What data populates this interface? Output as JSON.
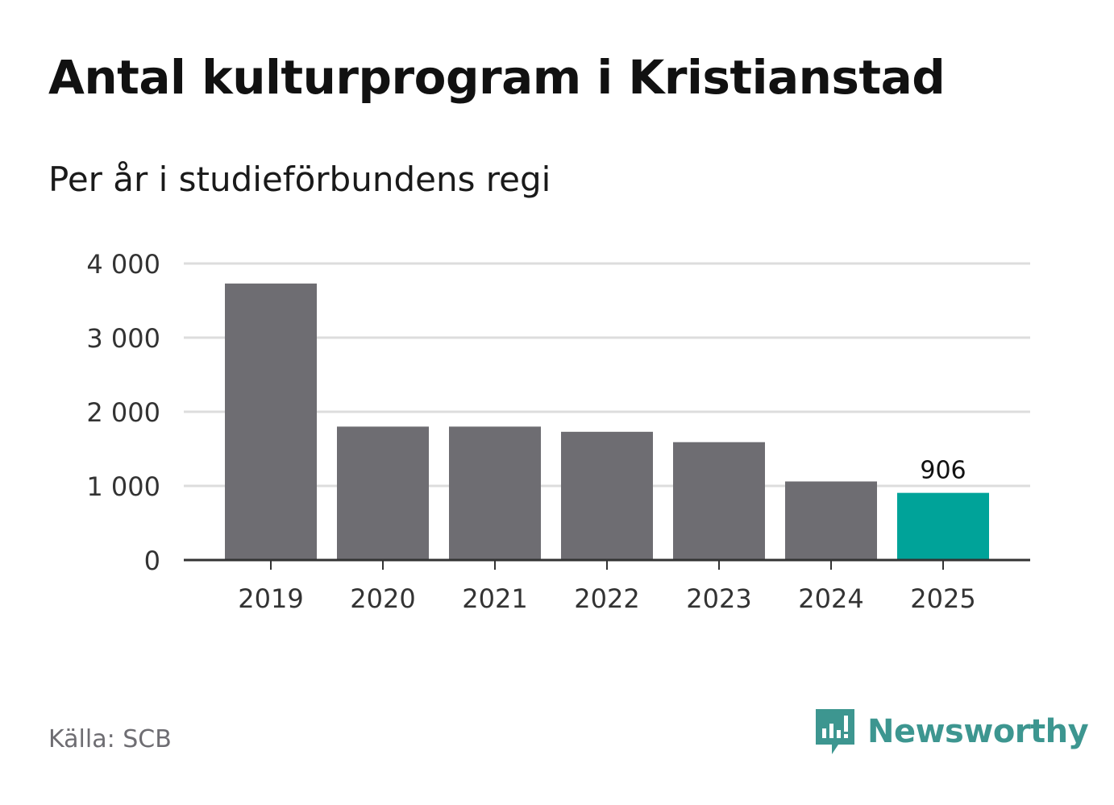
{
  "title": "Antal kulturprogram i Kristianstad",
  "subtitle": "Per år i studieförbundens regi",
  "source": "Källa: SCB",
  "brand": "Newsworthy",
  "colors": {
    "bar": "#6e6d72",
    "highlight": "#00a399",
    "grid": "#dddddd",
    "axis": "#333333",
    "brand": "#3d9690"
  },
  "chart_data": {
    "type": "bar",
    "title": "Antal kulturprogram i Kristianstad",
    "subtitle": "Per år i studieförbundens regi",
    "xlabel": "",
    "ylabel": "",
    "categories": [
      "2019",
      "2020",
      "2021",
      "2022",
      "2023",
      "2024",
      "2025"
    ],
    "values": [
      3730,
      1800,
      1800,
      1730,
      1590,
      1060,
      906
    ],
    "highlight_index": 6,
    "data_labels": [
      {
        "index": 6,
        "text": "906"
      }
    ],
    "ylim": [
      0,
      4000
    ],
    "yticks": [
      0,
      1000,
      2000,
      3000,
      4000
    ],
    "ytick_labels": [
      "0",
      "1 000",
      "2 000",
      "3 000",
      "4 000"
    ],
    "grid": true
  }
}
